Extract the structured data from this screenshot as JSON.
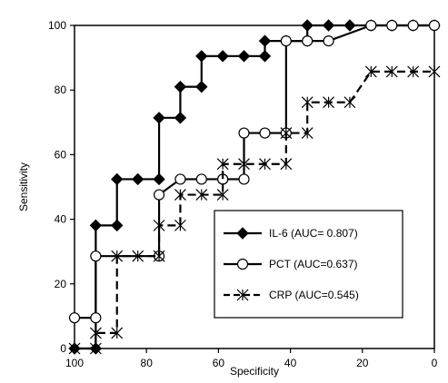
{
  "chart_data": {
    "type": "line",
    "title": "",
    "xlabel": "Specificity",
    "ylabel": "Sensitivity",
    "xlim": [
      100,
      0
    ],
    "ylim": [
      0,
      100
    ],
    "x_reversed": true,
    "xticks": [
      "100",
      "80",
      "60",
      "40",
      "20",
      "0"
    ],
    "yticks": [
      "0",
      "20",
      "40",
      "60",
      "80",
      "100"
    ],
    "grid": false,
    "legend_position": "bottom-right",
    "series": [
      {
        "name": "IL-6 (AUC= 0.807)",
        "marker": "diamond",
        "color": "#000000",
        "x": [
          100,
          94.1,
          94.1,
          88.2,
          88.2,
          82.4,
          76.5,
          76.5,
          70.6,
          70.6,
          64.7,
          64.7,
          58.8,
          52.9,
          47.1,
          47.1,
          41.2,
          35.3,
          35.3,
          29.4,
          23.5,
          17.6,
          11.8,
          5.9,
          0
        ],
        "y": [
          0,
          0,
          38.1,
          38.1,
          52.4,
          52.4,
          52.4,
          71.4,
          71.4,
          81.0,
          81.0,
          90.5,
          90.5,
          90.5,
          90.5,
          95.2,
          95.2,
          95.2,
          100,
          100,
          100,
          100,
          100,
          100,
          100
        ]
      },
      {
        "name": "PCT (AUC=0.637)",
        "marker": "circle",
        "color": "#000000",
        "x": [
          100,
          94.1,
          94.1,
          76.5,
          76.5,
          70.6,
          64.7,
          58.8,
          58.8,
          52.9,
          52.9,
          47.1,
          41.2,
          41.2,
          35.3,
          29.4,
          17.6,
          11.8,
          5.9,
          0
        ],
        "y": [
          9.5,
          9.5,
          28.6,
          28.6,
          47.6,
          52.4,
          52.4,
          52.4,
          52.4,
          52.4,
          66.7,
          66.7,
          66.7,
          95.2,
          95.2,
          95.2,
          100,
          100,
          100,
          100
        ],
        "draw_x": [
          100,
          94.1,
          94.1,
          76.5,
          76.5,
          70.6,
          70.6,
          58.8,
          58.8,
          52.9,
          52.9,
          41.2,
          41.2,
          29.4,
          17.6,
          0
        ]
      },
      {
        "name": "CRP (AUC=0.545)",
        "marker": "asterisk",
        "color": "#000000",
        "x": [
          100,
          94.1,
          94.1,
          88.2,
          88.2,
          82.4,
          76.5,
          76.5,
          70.6,
          70.6,
          64.7,
          58.8,
          58.8,
          52.9,
          47.1,
          41.2,
          41.2,
          35.3,
          35.3,
          29.4,
          23.5,
          17.6,
          11.8,
          5.9,
          0
        ],
        "y": [
          0,
          0,
          4.8,
          4.8,
          28.6,
          28.6,
          28.6,
          38.1,
          38.1,
          47.6,
          47.6,
          47.6,
          57.1,
          57.1,
          57.1,
          57.1,
          66.7,
          66.7,
          76.2,
          76.2,
          76.2,
          85.7,
          85.7,
          85.7,
          85.7
        ]
      }
    ]
  }
}
